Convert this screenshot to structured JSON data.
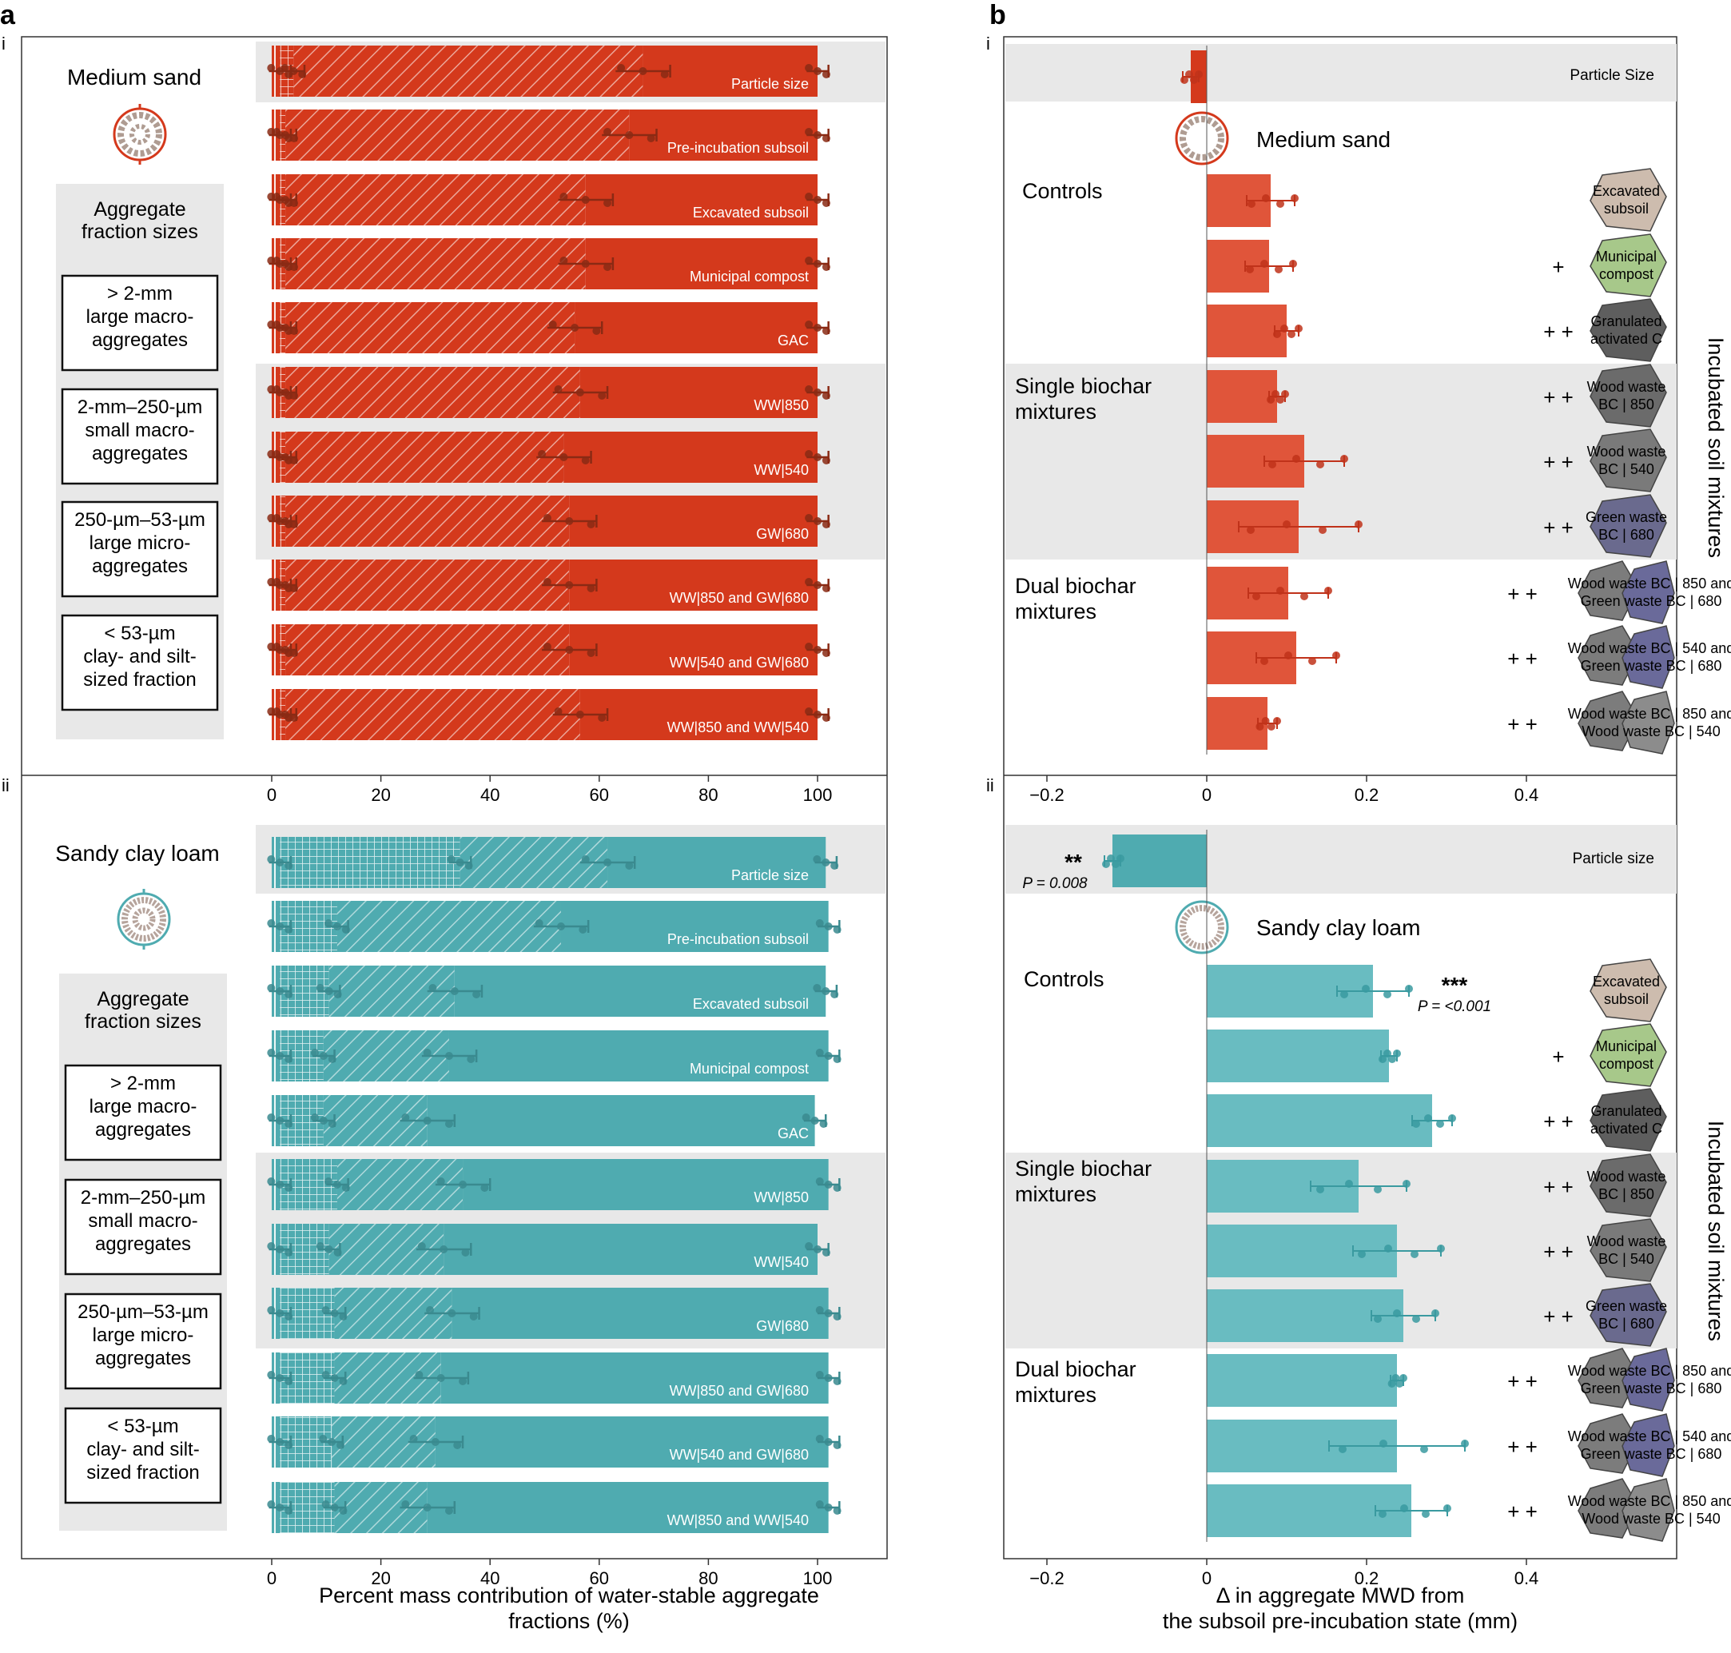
{
  "panel_labels": {
    "a": "a",
    "b": "b",
    "a_i": "i",
    "a_ii": "ii",
    "b_i": "i",
    "b_ii": "ii"
  },
  "colors": {
    "orange": "#d4391c",
    "orange_light": "#e0553a",
    "teal": "#4fabb0",
    "teal_light": "#69bcc1",
    "gray_band": "#e8e8e8",
    "dot_dark": "#8a2a14",
    "dot_teal": "#3a8a8f"
  },
  "legend": {
    "title": "Aggregate\nfraction sizes",
    "items": [
      "> 2-mm\nlarge macro-\naggregates",
      "2-mm–250-µm\nsmall macro-\naggregates",
      "250-µm–53-µm\nlarge micro-\naggregates",
      "< 53-µm\nclay- and silt-\nsized fraction"
    ]
  },
  "soil_titles": {
    "sand": "Medium sand",
    "loam": "Sandy clay loam"
  },
  "group_labels": {
    "controls": "Controls",
    "single": "Single biochar\nmixtures",
    "dual": "Dual biochar\nmixtures"
  },
  "side_label": "Incubated soil mixtures",
  "amendment_labels": [
    "Excavated\nsubsoil",
    "Municipal\ncompost",
    "Granulated\nactivated C",
    "Wood waste\nBC | 850",
    "Wood waste\nBC | 540",
    "Green waste\nBC | 680",
    "Wood waste BC | 850 and\nGreen waste BC | 680",
    "Wood waste BC | 540 and\nGreen waste BC | 680",
    "Wood waste BC | 850 and\nWood waste BC | 540"
  ],
  "plus_marks": [
    "",
    "+",
    "+ +",
    "+ +",
    "+ +",
    "+ +",
    "+ +",
    "+ +",
    "+ +"
  ],
  "annotations": {
    "sand_particle": "Particle Size",
    "loam_particle": "Particle size",
    "loam_particle_sig": "**",
    "loam_particle_p": "P = 0.008",
    "loam_excav_sig": "***",
    "loam_excav_p": "P = <0.001"
  },
  "chart_data": [
    {
      "id": "a_i",
      "type": "bar",
      "subtype": "stacked-horizontal",
      "soil": "Medium sand",
      "categories": [
        "Particle size",
        "Pre-incubation subsoil",
        "Excavated subsoil",
        "Municipal compost",
        "GAC",
        "WW|850",
        "WW|540",
        "GW|680",
        "WW|850  and GW|680",
        "WW|540 and GW|680",
        "WW|850 and WW|540"
      ],
      "series": [
        {
          "name": "< 53-µm clay- and silt-sized fraction",
          "values": [
            1.5,
            1.5,
            1.5,
            1.5,
            1.5,
            1.5,
            1.5,
            1.5,
            1.5,
            1.5,
            1.5
          ]
        },
        {
          "name": "250-µm–53-µm large micro-aggregates",
          "values": [
            2.5,
            1.0,
            1.0,
            1.0,
            1.0,
            1.0,
            1.0,
            1.0,
            1.0,
            1.0,
            1.0
          ]
        },
        {
          "name": "2-mm–250-µm small macro-aggregates",
          "values": [
            64,
            63,
            55,
            55,
            53,
            54,
            51,
            52,
            52,
            52,
            54
          ]
        },
        {
          "name": "> 2-mm large macro-aggregates",
          "values": [
            32,
            34.5,
            42.5,
            42.5,
            44.5,
            43.5,
            46.5,
            45.5,
            45.5,
            45.5,
            43.5
          ]
        }
      ],
      "xlim": [
        0,
        110
      ]
    },
    {
      "id": "a_ii",
      "type": "bar",
      "subtype": "stacked-horizontal",
      "soil": "Sandy clay loam",
      "categories": [
        "Particle size",
        "Pre-incubation subsoil",
        "Excavated subsoil",
        "Municipal compost",
        "GAC",
        "WW|850",
        "WW|540",
        "GW|680",
        "WW|850  and GW|680",
        "WW|540 and GW|680",
        "WW|850 and WW|540"
      ],
      "series": [
        {
          "name": "< 53-µm clay- and silt-sized fraction",
          "values": [
            1.5,
            1.5,
            1.5,
            1.5,
            1.5,
            1.5,
            1.5,
            1.5,
            1.5,
            1.5,
            1.5
          ]
        },
        {
          "name": "250-µm–53-µm large micro-aggregates",
          "values": [
            33,
            10.5,
            9,
            8,
            8,
            10.5,
            9,
            10,
            10,
            9.5,
            10
          ]
        },
        {
          "name": "2-mm–250-µm small macro-aggregates",
          "values": [
            27,
            41,
            23,
            23,
            19,
            23,
            21,
            21.5,
            19.5,
            19,
            17
          ]
        },
        {
          "name": "> 2-mm large macro-aggregates",
          "values": [
            40,
            49,
            68,
            69.5,
            71,
            67,
            68.5,
            69,
            71,
            72,
            73.5
          ]
        }
      ],
      "xlim": [
        0,
        110
      ],
      "xticks": [
        "0",
        "20",
        "40",
        "60",
        "80",
        "100"
      ],
      "xlabel": "Percent mass contribution of water-stable aggregate\nfractions (%)"
    },
    {
      "id": "b_i",
      "type": "bar",
      "subtype": "horizontal",
      "soil": "Medium sand",
      "categories": [
        "Particle Size",
        "Excavated subsoil",
        "Municipal compost",
        "Granulated activated C",
        "Wood waste BC | 850",
        "Wood waste BC | 540",
        "Green waste BC | 680",
        "WW850 + GW680",
        "WW540 + GW680",
        "WW850 + WW540"
      ],
      "values": [
        -0.02,
        0.08,
        0.078,
        0.1,
        0.088,
        0.122,
        0.115,
        0.102,
        0.112,
        0.076
      ],
      "errors": [
        0.01,
        0.03,
        0.03,
        0.015,
        0.01,
        0.05,
        0.075,
        0.05,
        0.05,
        0.012
      ],
      "xlim": [
        -0.25,
        0.6
      ],
      "xticks": [
        "−0.2",
        "0",
        "0.2",
        "0.4"
      ]
    },
    {
      "id": "b_ii",
      "type": "bar",
      "subtype": "horizontal",
      "soil": "Sandy clay loam",
      "categories": [
        "Particle size",
        "Excavated subsoil",
        "Municipal compost",
        "Granulated activated C",
        "Wood waste BC | 850",
        "Wood waste BC | 540",
        "Green waste BC | 680",
        "WW850 + GW680",
        "WW540 + GW680",
        "WW850 + WW540"
      ],
      "values": [
        -0.118,
        0.208,
        0.228,
        0.282,
        0.19,
        0.238,
        0.246,
        0.238,
        0.238,
        0.256
      ],
      "errors": [
        0.01,
        0.045,
        0.01,
        0.025,
        0.06,
        0.055,
        0.04,
        0.008,
        0.085,
        0.045
      ],
      "xlim": [
        -0.25,
        0.6
      ],
      "xticks": [
        "−0.2",
        "0",
        "0.2",
        "0.4"
      ],
      "xlabel": "Δ  in aggregate MWD from\nthe subsoil pre-incubation state (mm)"
    }
  ]
}
